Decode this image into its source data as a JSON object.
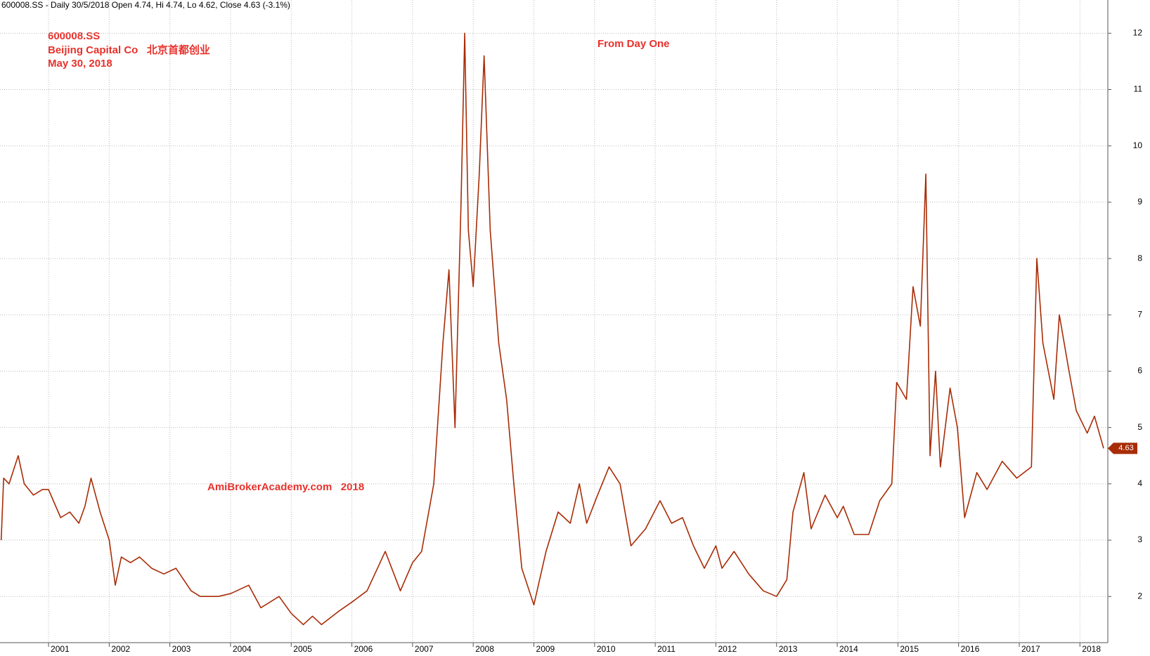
{
  "chart_data": {
    "type": "line",
    "header": "600008.SS - Daily 30/5/2018 Open 4.74, Hi 4.74, Lo 4.62, Close 4.63 (-3.1%)",
    "annotations": [
      "600008.SS",
      "Beijing Capital Co   北京首都创业",
      "May 30, 2018",
      "From Day One",
      "AmiBrokerAcademy.com   2018"
    ],
    "last_price": 4.63,
    "color": "#a82c06",
    "grid": true,
    "xlim": [
      2000.2,
      2018.46
    ],
    "xticks": [
      2001,
      2002,
      2003,
      2004,
      2005,
      2006,
      2007,
      2008,
      2009,
      2010,
      2011,
      2012,
      2013,
      2014,
      2015,
      2016,
      2017,
      2018
    ],
    "ylim": [
      1.18,
      12.59
    ],
    "yticks": [
      2,
      3,
      4,
      5,
      6,
      7,
      8,
      9,
      10,
      11,
      12
    ],
    "x": [
      2000.22,
      2000.26,
      2000.35,
      2000.5,
      2000.6,
      2000.75,
      2000.9,
      2001.0,
      2001.2,
      2001.35,
      2001.5,
      2001.6,
      2001.7,
      2001.85,
      2002.0,
      2002.1,
      2002.2,
      2002.35,
      2002.5,
      2002.7,
      2002.9,
      2003.1,
      2003.35,
      2003.5,
      2003.8,
      2004.0,
      2004.3,
      2004.5,
      2004.8,
      2005.0,
      2005.2,
      2005.35,
      2005.5,
      2005.8,
      2006.0,
      2006.25,
      2006.55,
      2006.8,
      2007.0,
      2007.15,
      2007.35,
      2007.5,
      2007.6,
      2007.7,
      2007.8,
      2007.86,
      2007.92,
      2008.0,
      2008.1,
      2008.18,
      2008.28,
      2008.42,
      2008.55,
      2008.67,
      2008.8,
      2009.0,
      2009.2,
      2009.4,
      2009.6,
      2009.75,
      2009.87,
      2010.05,
      2010.24,
      2010.42,
      2010.6,
      2010.84,
      2011.08,
      2011.27,
      2011.45,
      2011.63,
      2011.81,
      2012.0,
      2012.1,
      2012.3,
      2012.54,
      2012.78,
      2013.0,
      2013.17,
      2013.27,
      2013.45,
      2013.57,
      2013.8,
      2014.0,
      2014.1,
      2014.28,
      2014.52,
      2014.7,
      2014.9,
      2014.98,
      2015.14,
      2015.25,
      2015.37,
      2015.46,
      2015.53,
      2015.62,
      2015.7,
      2015.86,
      2015.98,
      2016.1,
      2016.3,
      2016.47,
      2016.72,
      2016.96,
      2017.2,
      2017.29,
      2017.39,
      2017.57,
      2017.66,
      2017.82,
      2017.94,
      2018.12,
      2018.24,
      2018.39
    ],
    "values": [
      3.0,
      4.1,
      4.0,
      4.5,
      4.0,
      3.8,
      3.9,
      3.9,
      3.4,
      3.5,
      3.3,
      3.6,
      4.1,
      3.5,
      3.0,
      2.2,
      2.7,
      2.6,
      2.7,
      2.5,
      2.4,
      2.5,
      2.1,
      2.0,
      2.0,
      2.05,
      2.2,
      1.8,
      2.0,
      1.7,
      1.5,
      1.65,
      1.5,
      1.75,
      1.9,
      2.1,
      2.8,
      2.1,
      2.6,
      2.8,
      4.0,
      6.5,
      7.8,
      5.0,
      9.0,
      12.0,
      8.5,
      7.5,
      9.5,
      11.6,
      8.5,
      6.5,
      5.5,
      4.0,
      2.5,
      1.85,
      2.8,
      3.5,
      3.3,
      4.0,
      3.3,
      3.8,
      4.3,
      4.0,
      2.9,
      3.2,
      3.7,
      3.3,
      3.4,
      2.9,
      2.5,
      2.9,
      2.5,
      2.8,
      2.4,
      2.1,
      2.0,
      2.3,
      3.5,
      4.2,
      3.2,
      3.8,
      3.4,
      3.6,
      3.1,
      3.1,
      3.7,
      4.0,
      5.8,
      5.5,
      7.5,
      6.8,
      9.5,
      4.5,
      6.0,
      4.3,
      5.7,
      5.0,
      3.4,
      4.2,
      3.9,
      4.4,
      4.1,
      4.3,
      8.0,
      6.5,
      5.5,
      7.0,
      6.0,
      5.3,
      4.9,
      5.2,
      4.63
    ]
  }
}
